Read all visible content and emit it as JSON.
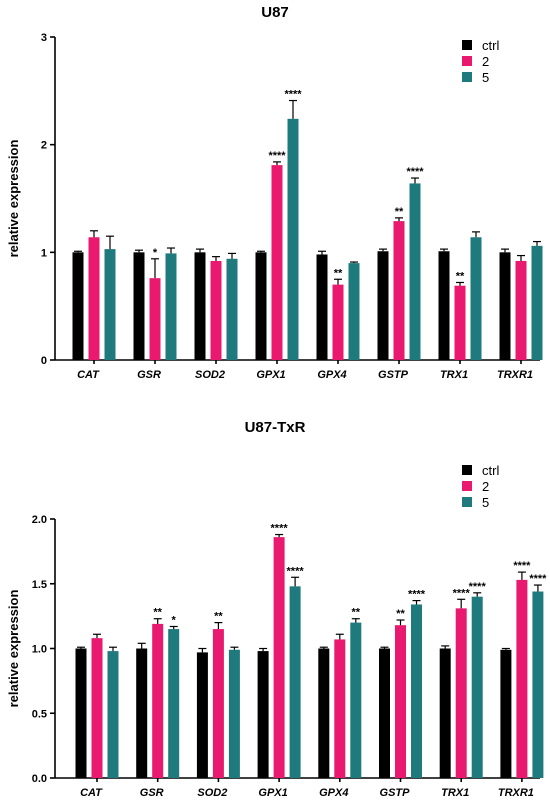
{
  "chart_data": [
    {
      "type": "bar",
      "title": "U87",
      "ylabel": "relative expression",
      "xlabel": "",
      "ylim": [
        0,
        3
      ],
      "yticks": [
        "0",
        "1",
        "2",
        "3"
      ],
      "categories": [
        "CAT",
        "GSR",
        "SOD2",
        "GPX1",
        "GPX4",
        "GSTP",
        "TRX1",
        "TRXR1"
      ],
      "legend": {
        "placement": "top-right"
      },
      "series": [
        {
          "name": "ctrl",
          "color": "#000000",
          "values": [
            1.0,
            1.0,
            1.0,
            1.0,
            0.98,
            1.01,
            1.01,
            1.0
          ],
          "errors": [
            0.01,
            0.02,
            0.03,
            0.01,
            0.03,
            0.02,
            0.02,
            0.03
          ],
          "significance": [
            "",
            "",
            "",
            "",
            "",
            "",
            "",
            ""
          ]
        },
        {
          "name": "2",
          "color": "#e8196e",
          "values": [
            1.14,
            0.76,
            0.92,
            1.81,
            0.7,
            1.29,
            0.69,
            0.92
          ],
          "errors": [
            0.06,
            0.18,
            0.04,
            0.03,
            0.05,
            0.03,
            0.03,
            0.05
          ],
          "significance": [
            "",
            "*",
            "",
            "****",
            "**",
            "**",
            "**",
            ""
          ]
        },
        {
          "name": "5",
          "color": "#1f7a7e",
          "values": [
            1.03,
            0.99,
            0.94,
            2.24,
            0.9,
            1.64,
            1.14,
            1.06
          ],
          "errors": [
            0.12,
            0.05,
            0.05,
            0.17,
            0.01,
            0.05,
            0.05,
            0.04
          ],
          "significance": [
            "",
            "",
            "",
            "****",
            "",
            "****",
            "",
            ""
          ]
        }
      ]
    },
    {
      "type": "bar",
      "title": "U87-TxR",
      "ylabel": "relative expression",
      "xlabel": "",
      "ylim": [
        0,
        2.0
      ],
      "yticks": [
        "0.0",
        "0.5",
        "1.0",
        "1.5",
        "2.0"
      ],
      "categories": [
        "CAT",
        "GSR",
        "SOD2",
        "GPX1",
        "GPX4",
        "GSTP",
        "TRX1",
        "TRXR1"
      ],
      "legend": {
        "placement": "top-right"
      },
      "series": [
        {
          "name": "ctrl",
          "color": "#000000",
          "values": [
            1.0,
            1.0,
            0.97,
            0.98,
            1.0,
            1.0,
            1.0,
            0.99
          ],
          "errors": [
            0.01,
            0.04,
            0.03,
            0.02,
            0.01,
            0.01,
            0.02,
            0.01
          ],
          "significance": [
            "",
            "",
            "",
            "",
            "",
            "",
            "",
            ""
          ]
        },
        {
          "name": "2",
          "color": "#e8196e",
          "values": [
            1.08,
            1.19,
            1.15,
            1.86,
            1.07,
            1.18,
            1.31,
            1.53
          ],
          "errors": [
            0.03,
            0.04,
            0.05,
            0.02,
            0.04,
            0.04,
            0.07,
            0.06
          ],
          "significance": [
            "",
            "**",
            "**",
            "****",
            "",
            "**",
            "****",
            "****"
          ]
        },
        {
          "name": "5",
          "color": "#1f7a7e",
          "values": [
            0.98,
            1.15,
            0.99,
            1.48,
            1.2,
            1.34,
            1.4,
            1.44
          ],
          "errors": [
            0.03,
            0.02,
            0.02,
            0.07,
            0.03,
            0.03,
            0.03,
            0.05
          ],
          "significance": [
            "",
            "*",
            "",
            "****",
            "**",
            "****",
            "****",
            "****"
          ]
        }
      ]
    }
  ]
}
